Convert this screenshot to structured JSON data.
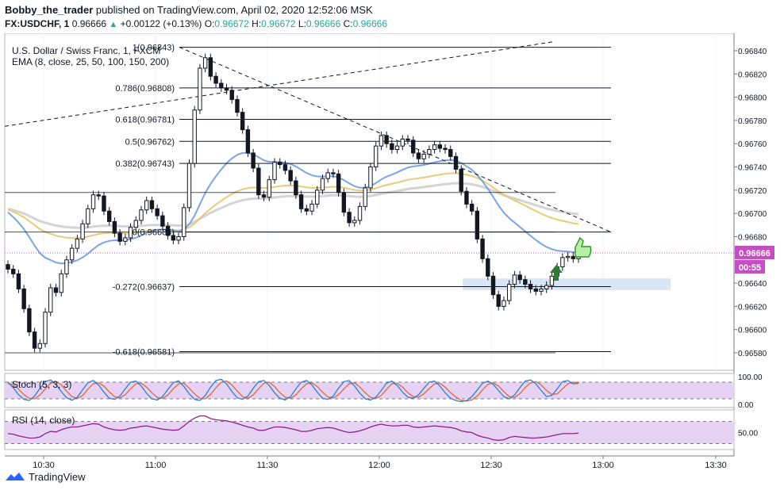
{
  "header": {
    "author": "Bobby_the_trader",
    "published_text": "published on TradingView.com, April 02, 2020 12:52:06 MSK",
    "symbol_line": "FX:USDCHF, 1",
    "last": "0.96666",
    "change": "+0.00122 (+0.13%)",
    "o_label": "O:",
    "o_value": "0.96672",
    "h_label": "H:",
    "h_value": "0.96672",
    "l_label": "L:",
    "l_value": "0.96666",
    "c_label": "C:",
    "c_value": "0.96666"
  },
  "footer": {
    "brand": "TradingView",
    "icon": "tradingview-logo-icon"
  },
  "colors": {
    "up": "#26a69a",
    "candle": "#131722",
    "ema_fast": "#6f9ae0",
    "ema_mid": "#e8c46a",
    "ema_slow": "#cfcfcf",
    "stoch_k": "#2a7fd4",
    "stoch_d": "#e0673a",
    "rsi": "#8e1f8c",
    "price_badge": "#c64ec3",
    "band": "#d6e2f5"
  },
  "chart_data": [
    {
      "type": "candlestick",
      "title": "U.S. Dollar / Swiss Franc, 1, FXCM",
      "indicator_label": "EMA (8, close, 25, 50, 100, 150, 200)",
      "y_axis_ticks": [
        "0.96840",
        "0.96820",
        "0.96800",
        "0.96780",
        "0.96760",
        "0.96740",
        "0.96720",
        "0.96700",
        "0.96680",
        "0.96640",
        "0.96620",
        "0.96600",
        "0.96580"
      ],
      "x_axis_ticks": [
        "10:30",
        "11:00",
        "11:30",
        "12:00",
        "12:30",
        "13:00",
        "13:30"
      ],
      "ylim": [
        0.96565,
        0.96855
      ],
      "price_label": "0.96666",
      "countdown_label": "00:55",
      "fib_levels": [
        {
          "label": "1(0.96843)",
          "value": 0.96843
        },
        {
          "label": "0.786(0.96808)",
          "value": 0.96808
        },
        {
          "label": "0.618(0.96781)",
          "value": 0.96781
        },
        {
          "label": "0.5(0.96762)",
          "value": 0.96762
        },
        {
          "label": "0.382(0.96743)",
          "value": 0.96743
        },
        {
          "label": "0(0.96684)",
          "value": 0.96684
        },
        {
          "label": "-0.272(0.96637)",
          "value": 0.96637
        },
        {
          "label": "-0.618(0.96581)",
          "value": 0.96581
        }
      ],
      "closes": [
        0.96652,
        0.96648,
        0.96635,
        0.96618,
        0.96598,
        0.96584,
        0.96588,
        0.96615,
        0.96636,
        0.96632,
        0.96648,
        0.9666,
        0.9667,
        0.96678,
        0.96691,
        0.96704,
        0.96716,
        0.96715,
        0.96702,
        0.96693,
        0.96683,
        0.96676,
        0.96679,
        0.96688,
        0.96694,
        0.96703,
        0.96711,
        0.96704,
        0.96698,
        0.96689,
        0.96681,
        0.96677,
        0.9668,
        0.96705,
        0.96743,
        0.96789,
        0.96825,
        0.96834,
        0.96818,
        0.96812,
        0.96808,
        0.96806,
        0.96798,
        0.96787,
        0.96772,
        0.96752,
        0.96739,
        0.96716,
        0.96714,
        0.96729,
        0.96744,
        0.96742,
        0.96737,
        0.96728,
        0.96716,
        0.96704,
        0.96702,
        0.96708,
        0.9672,
        0.9673,
        0.96735,
        0.96734,
        0.96718,
        0.96701,
        0.96692,
        0.96694,
        0.96706,
        0.96722,
        0.9674,
        0.96758,
        0.96767,
        0.9676,
        0.96755,
        0.96758,
        0.96764,
        0.96763,
        0.96752,
        0.96747,
        0.96751,
        0.96755,
        0.96759,
        0.96756,
        0.96755,
        0.96749,
        0.96738,
        0.96719,
        0.96708,
        0.96702,
        0.96678,
        0.96661,
        0.96646,
        0.9663,
        0.9662,
        0.96625,
        0.96639,
        0.96647,
        0.96643,
        0.96639,
        0.96635,
        0.96633,
        0.96635,
        0.96638,
        0.96646,
        0.96654,
        0.96662,
        0.96663,
        0.96661,
        0.96666
      ],
      "price_axis_label": "0.96666",
      "stoch": {
        "label": "Stoch (5, 3, 3)",
        "ticks": [
          "100.00",
          "0.00"
        ],
        "k": [
          80,
          60,
          35,
          18,
          14,
          30,
          58,
          82,
          88,
          72,
          46,
          24,
          15,
          26,
          52,
          78,
          86,
          70,
          44,
          22,
          18,
          30,
          56,
          80,
          84,
          66,
          40,
          20,
          16,
          28,
          54,
          78,
          85,
          64,
          38,
          18,
          14,
          32,
          62,
          86,
          90,
          74,
          46,
          24,
          18,
          30,
          58,
          82,
          86,
          68,
          42,
          22,
          16,
          28,
          56,
          80,
          86,
          70,
          44,
          22,
          18,
          30,
          58,
          82,
          86,
          66,
          40,
          20,
          16,
          26,
          50,
          76,
          84,
          68,
          44,
          26,
          22,
          34,
          58,
          80,
          84,
          66,
          42,
          22,
          14,
          10,
          14,
          28,
          52,
          76,
          84,
          72,
          50,
          28,
          20,
          34,
          60,
          84,
          88,
          74,
          50,
          28,
          32,
          56,
          82,
          86,
          74,
          76
        ],
        "d": [
          75,
          70,
          55,
          35,
          22,
          20,
          34,
          55,
          76,
          82,
          70,
          48,
          28,
          21,
          32,
          55,
          74,
          78,
          66,
          45,
          28,
          23,
          35,
          56,
          74,
          76,
          62,
          42,
          25,
          21,
          34,
          56,
          74,
          76,
          58,
          38,
          22,
          20,
          36,
          60,
          80,
          84,
          70,
          48,
          28,
          22,
          34,
          56,
          76,
          80,
          64,
          42,
          26,
          22,
          34,
          56,
          74,
          78,
          64,
          44,
          27,
          23,
          35,
          56,
          74,
          78,
          62,
          42,
          25,
          21,
          32,
          54,
          74,
          76,
          62,
          42,
          28,
          26,
          38,
          57,
          74,
          76,
          62,
          42,
          26,
          15,
          12,
          16,
          30,
          52,
          72,
          78,
          66,
          46,
          28,
          25,
          38,
          60,
          78,
          82,
          70,
          50,
          36,
          38,
          56,
          74,
          80,
          78
        ]
      },
      "rsi": {
        "label": "RSI (14, close)",
        "ticks": [
          "50.00"
        ],
        "values": [
          48,
          47,
          44,
          42,
          40,
          40,
          42,
          48,
          52,
          51,
          55,
          58,
          60,
          60,
          62,
          64,
          66,
          65,
          60,
          57,
          55,
          54,
          55,
          58,
          59,
          61,
          62,
          60,
          58,
          56,
          55,
          54,
          55,
          62,
          70,
          76,
          80,
          80,
          75,
          73,
          72,
          71,
          69,
          66,
          63,
          60,
          58,
          54,
          54,
          57,
          60,
          60,
          59,
          57,
          55,
          52,
          52,
          54,
          57,
          58,
          59,
          58,
          55,
          52,
          50,
          51,
          53,
          56,
          60,
          63,
          65,
          63,
          62,
          62,
          63,
          63,
          60,
          59,
          60,
          61,
          62,
          61,
          60,
          59,
          57,
          53,
          51,
          50,
          45,
          42,
          40,
          37,
          36,
          37,
          41,
          43,
          42,
          41,
          40,
          40,
          41,
          42,
          44,
          46,
          48,
          48,
          48,
          49
        ]
      }
    }
  ]
}
